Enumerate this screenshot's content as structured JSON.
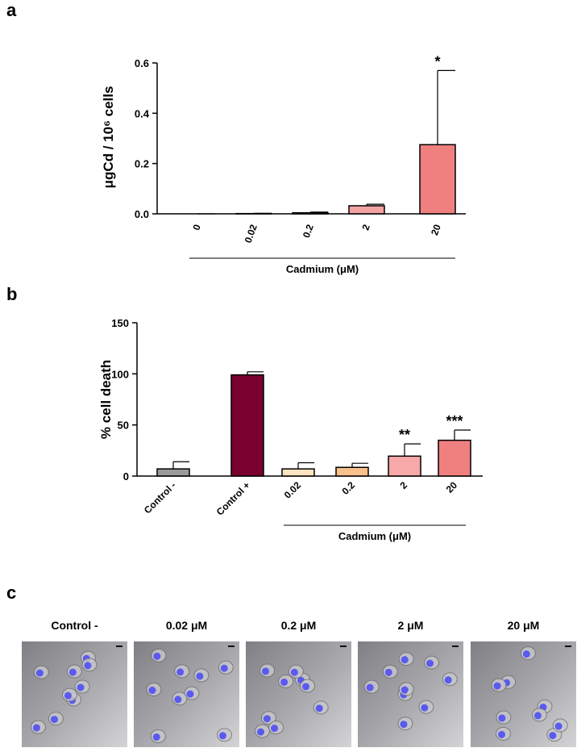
{
  "chart_data": [
    {
      "type": "bar",
      "panel": "a",
      "ylabel": "μgCd / 10⁶ cells",
      "group_label": "Cadmium (μM)",
      "categories": [
        "0",
        "0.02",
        "0.2",
        "2",
        "20"
      ],
      "values": [
        0,
        0.001,
        0.004,
        0.032,
        0.275
      ],
      "errors": [
        0,
        0.001,
        0.003,
        0.006,
        0.295
      ],
      "colors": [
        "#fbe3e3",
        "#f9d0d0",
        "#f7bcbc",
        "#f4a3a3",
        "#f08080"
      ],
      "significance": [
        null,
        null,
        null,
        null,
        "*"
      ],
      "ylim": [
        0,
        0.6
      ],
      "yticks": [
        {
          "value": 0,
          "label": "0.0"
        },
        0.2,
        0.4,
        0.6
      ]
    },
    {
      "type": "bar",
      "panel": "b",
      "ylabel": "% cell death",
      "group_label": "Cadmium (μM)",
      "categories": [
        "Control -",
        "Control +",
        "0.02",
        "0.2",
        "2",
        "20"
      ],
      "values": [
        7,
        99,
        7,
        8.5,
        19.5,
        35
      ],
      "errors": [
        7,
        3,
        6,
        4,
        12,
        10
      ],
      "colors": [
        "#9a9a9a",
        "#7a0030",
        "#fde3c0",
        "#f8c08a",
        "#f7a8a8",
        "#f08080"
      ],
      "significance": [
        null,
        null,
        null,
        null,
        "**",
        "***"
      ],
      "ylim": [
        0,
        150
      ],
      "yticks": [
        0,
        50,
        100,
        150
      ]
    }
  ],
  "panel_c": {
    "label": "c",
    "images": [
      "Control -",
      "0.02 μM",
      "0.2 μM",
      "2 μM",
      "20 μM"
    ]
  }
}
